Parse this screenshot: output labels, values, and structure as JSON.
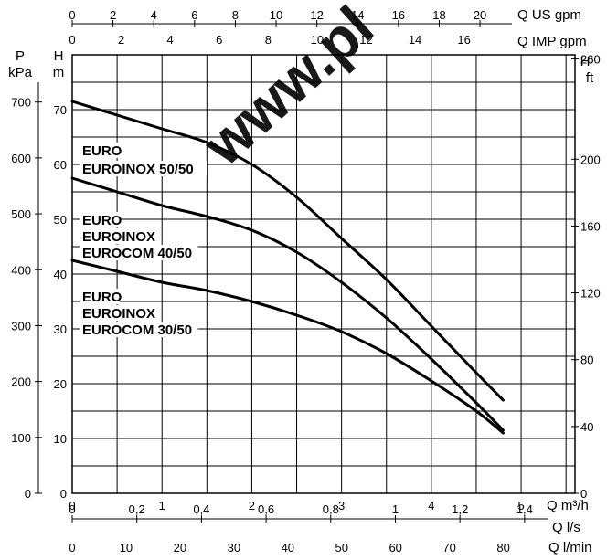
{
  "chart_data": {
    "type": "line",
    "title": "",
    "x_axes": {
      "m3h": {
        "label": "Q m³/h",
        "ticks": [
          "0",
          "1",
          "2",
          "3",
          "4",
          "5"
        ],
        "range": [
          0,
          5.6
        ]
      },
      "ls": {
        "label": "Q l/s",
        "ticks": [
          "0",
          "0,2",
          "0,4",
          "0,6",
          "0,8",
          "1",
          "1,2",
          "1,4"
        ],
        "range": [
          0,
          1.556
        ]
      },
      "lmin": {
        "label": "Q l/min",
        "ticks": [
          "0",
          "10",
          "20",
          "30",
          "40",
          "50",
          "60",
          "70",
          "80"
        ],
        "range": [
          0,
          93.3
        ]
      },
      "usgpm": {
        "label": "Q US gpm",
        "ticks": [
          "0",
          "2",
          "4",
          "6",
          "8",
          "10",
          "12",
          "14",
          "16",
          "18",
          "20"
        ],
        "range": [
          0,
          24.66
        ]
      },
      "impgpm": {
        "label": "Q IMP gpm",
        "ticks": [
          "0",
          "2",
          "4",
          "6",
          "8",
          "10",
          "12",
          "14",
          "16"
        ],
        "range": [
          0,
          20.53
        ]
      }
    },
    "y_axes": {
      "p_kpa": {
        "label_top": "P",
        "label_unit": "kPa",
        "ticks": [
          "0",
          "100",
          "200",
          "300",
          "400",
          "500",
          "600",
          "700"
        ],
        "range": [
          0,
          784.5
        ]
      },
      "h_m": {
        "label_top": "H",
        "label_unit": "m",
        "ticks": [
          "0",
          "10",
          "20",
          "30",
          "40",
          "50",
          "60",
          "70"
        ],
        "range": [
          0,
          80
        ]
      },
      "h_ft": {
        "label_top": "H",
        "label_unit": "ft",
        "ticks": [
          "0",
          "40",
          "80",
          "120",
          "160",
          "200",
          "260"
        ],
        "range": [
          0,
          262.5
        ]
      }
    },
    "x_unit": "m3/h",
    "y_unit": "m",
    "series": [
      {
        "name": "EURO\nEUROINOX 50/50",
        "label_lines": [
          "EURO",
          "EUROINOX 50/50"
        ],
        "x": [
          0,
          0.5,
          1,
          1.5,
          2,
          2.5,
          3,
          3.5,
          4,
          4.5,
          4.8
        ],
        "y": [
          71.5,
          69,
          66.5,
          64,
          60,
          54,
          46.5,
          39,
          30.5,
          22,
          17
        ]
      },
      {
        "name": "EURO\nEUROINOX\nEUROCOM 40/50",
        "label_lines": [
          "EURO",
          "EUROINOX",
          "EUROCOM 40/50"
        ],
        "x": [
          0,
          0.5,
          1,
          1.5,
          2,
          2.5,
          3,
          3.5,
          4,
          4.5,
          4.8
        ],
        "y": [
          57.5,
          55,
          52.5,
          50.5,
          48,
          44,
          38.5,
          32,
          24.5,
          16.5,
          11.5
        ]
      },
      {
        "name": "EURO\nEUROINOX\nEUROCOM 30/50",
        "label_lines": [
          "EURO",
          "EUROINOX",
          "EUROCOM 30/50"
        ],
        "x": [
          0,
          0.5,
          1,
          1.5,
          2,
          2.5,
          3,
          3.5,
          4,
          4.5,
          4.8
        ],
        "y": [
          42.5,
          40.5,
          38.5,
          37,
          35,
          32.5,
          29.5,
          25.5,
          20.5,
          15,
          11
        ]
      }
    ],
    "grid": true,
    "legend": "inline labels left of curves",
    "watermark": "www.pl"
  }
}
